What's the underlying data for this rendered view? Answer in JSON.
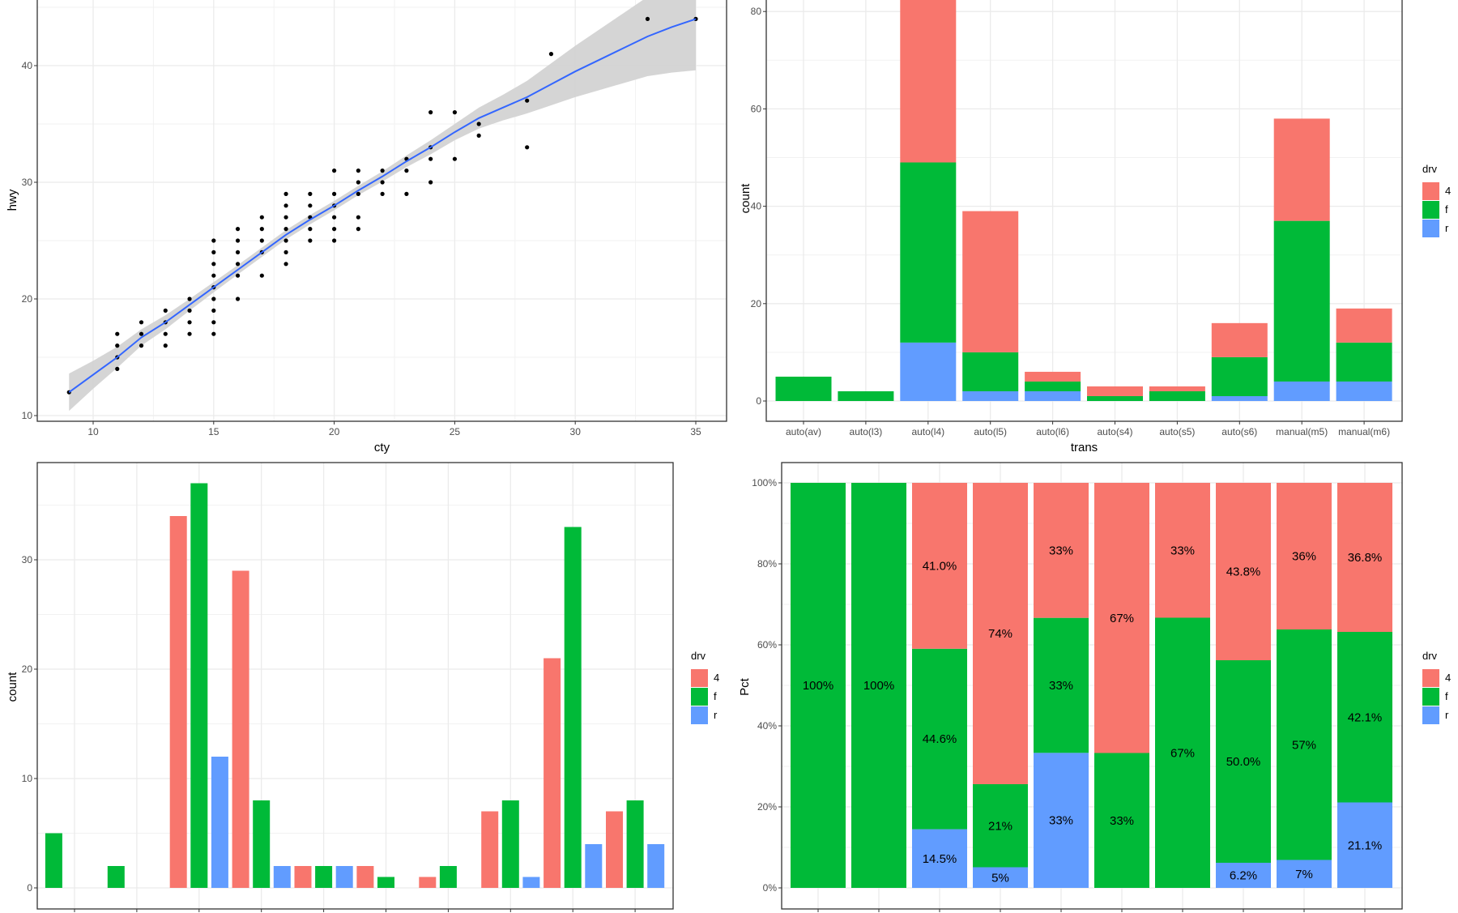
{
  "colors": {
    "4": "#F8766D",
    "f": "#00BA38",
    "r": "#619CFF",
    "smooth_line": "#3366FF",
    "smooth_band": "#D3D3D3",
    "points": "#000000"
  },
  "chart_data": [
    {
      "type": "scatter",
      "xlabel": "cty",
      "ylabel": "hwy",
      "x_ticks": [
        "10",
        "15",
        "20",
        "25",
        "30",
        "35"
      ],
      "y_ticks": [
        "10",
        "20",
        "30",
        "40"
      ],
      "grid": true,
      "points": [
        [
          9,
          12
        ],
        [
          11,
          17
        ],
        [
          11,
          16
        ],
        [
          11,
          15
        ],
        [
          11,
          14
        ],
        [
          12,
          18
        ],
        [
          12,
          17
        ],
        [
          12,
          16
        ],
        [
          13,
          19
        ],
        [
          13,
          18
        ],
        [
          13,
          17
        ],
        [
          13,
          16
        ],
        [
          14,
          20
        ],
        [
          14,
          19
        ],
        [
          14,
          18
        ],
        [
          14,
          17
        ],
        [
          15,
          25
        ],
        [
          15,
          24
        ],
        [
          15,
          23
        ],
        [
          15,
          22
        ],
        [
          15,
          21
        ],
        [
          15,
          20
        ],
        [
          15,
          19
        ],
        [
          15,
          18
        ],
        [
          15,
          17
        ],
        [
          16,
          26
        ],
        [
          16,
          25
        ],
        [
          16,
          24
        ],
        [
          16,
          23
        ],
        [
          16,
          22
        ],
        [
          16,
          20
        ],
        [
          17,
          27
        ],
        [
          17,
          26
        ],
        [
          17,
          25
        ],
        [
          17,
          24
        ],
        [
          17,
          22
        ],
        [
          18,
          29
        ],
        [
          18,
          28
        ],
        [
          18,
          27
        ],
        [
          18,
          26
        ],
        [
          18,
          25
        ],
        [
          18,
          24
        ],
        [
          18,
          23
        ],
        [
          19,
          29
        ],
        [
          19,
          28
        ],
        [
          19,
          27
        ],
        [
          19,
          26
        ],
        [
          19,
          25
        ],
        [
          20,
          31
        ],
        [
          20,
          29
        ],
        [
          20,
          28
        ],
        [
          20,
          27
        ],
        [
          20,
          26
        ],
        [
          20,
          25
        ],
        [
          21,
          31
        ],
        [
          21,
          30
        ],
        [
          21,
          29
        ],
        [
          21,
          27
        ],
        [
          21,
          26
        ],
        [
          22,
          31
        ],
        [
          22,
          30
        ],
        [
          22,
          29
        ],
        [
          23,
          32
        ],
        [
          23,
          31
        ],
        [
          23,
          29
        ],
        [
          24,
          36
        ],
        [
          24,
          33
        ],
        [
          24,
          32
        ],
        [
          24,
          30
        ],
        [
          25,
          36
        ],
        [
          25,
          32
        ],
        [
          26,
          35
        ],
        [
          26,
          34
        ],
        [
          28,
          37
        ],
        [
          28,
          33
        ],
        [
          29,
          41
        ],
        [
          33,
          44
        ],
        [
          35,
          44
        ]
      ],
      "smooth_fit": {
        "x": [
          9,
          10,
          11,
          12,
          13,
          14,
          15,
          16,
          17,
          18,
          19,
          20,
          21,
          22,
          23,
          24,
          25,
          26,
          27,
          28,
          29,
          30,
          31,
          32,
          33,
          34,
          35
        ],
        "y": [
          12,
          13.5,
          15,
          16.7,
          18,
          19.5,
          21,
          22.5,
          24,
          25.5,
          26.8,
          28,
          29.3,
          30.5,
          31.8,
          33,
          34.3,
          35.5,
          36.4,
          37.3,
          38.4,
          39.5,
          40.5,
          41.5,
          42.5,
          43.3,
          44
        ],
        "se": [
          0.8,
          0.6,
          0.45,
          0.35,
          0.3,
          0.25,
          0.22,
          0.2,
          0.2,
          0.2,
          0.2,
          0.2,
          0.2,
          0.22,
          0.25,
          0.3,
          0.35,
          0.45,
          0.55,
          0.7,
          0.9,
          1.1,
          1.3,
          1.5,
          1.7,
          1.95,
          2.2
        ]
      }
    },
    {
      "type": "bar",
      "stacking": "stack",
      "xlabel": "trans",
      "ylabel": "count",
      "categories": [
        "auto(av)",
        "auto(l3)",
        "auto(l4)",
        "auto(l5)",
        "auto(l6)",
        "auto(s4)",
        "auto(s5)",
        "auto(s6)",
        "manual(m5)",
        "manual(m6)"
      ],
      "y_ticks": [
        "0",
        "20",
        "40",
        "60",
        "80"
      ],
      "legend_title": "drv",
      "legend_position": "right",
      "series": [
        {
          "name": "4",
          "values": [
            0,
            0,
            34,
            29,
            2,
            2,
            1,
            7,
            21,
            7
          ]
        },
        {
          "name": "f",
          "values": [
            5,
            2,
            37,
            8,
            2,
            1,
            2,
            8,
            33,
            8
          ]
        },
        {
          "name": "r",
          "values": [
            0,
            0,
            12,
            2,
            2,
            0,
            0,
            1,
            4,
            4
          ]
        }
      ]
    },
    {
      "type": "bar",
      "stacking": "dodge",
      "ylabel": "count",
      "y_ticks": [
        "0",
        "10",
        "20",
        "30"
      ],
      "legend_title": "drv",
      "legend_position": "right",
      "series": [
        {
          "name": "4",
          "values": [
            null,
            null,
            34,
            29,
            2,
            2,
            1,
            7,
            21,
            7
          ]
        },
        {
          "name": "f",
          "values": [
            5,
            2,
            37,
            8,
            2,
            1,
            2,
            8,
            33,
            8
          ]
        },
        {
          "name": "r",
          "values": [
            null,
            null,
            12,
            2,
            2,
            null,
            null,
            1,
            4,
            4
          ]
        }
      ]
    },
    {
      "type": "bar",
      "stacking": "fill",
      "ylabel": "Pct",
      "y_ticks": [
        "0%",
        "20%",
        "40%",
        "60%",
        "80%",
        "100%"
      ],
      "legend_title": "drv",
      "legend_position": "right",
      "series": [
        {
          "name": "4",
          "values": [
            0,
            0,
            41.0,
            74.4,
            33.3,
            66.7,
            33.3,
            43.8,
            36.2,
            36.8
          ],
          "labels": [
            null,
            null,
            "41.0%",
            "74%",
            "33%",
            "67%",
            "33%",
            "43.8%",
            "36%",
            "36.8%"
          ]
        },
        {
          "name": "f",
          "values": [
            100,
            100,
            44.6,
            20.5,
            33.3,
            33.3,
            66.7,
            50.0,
            56.9,
            42.1
          ],
          "labels": [
            "100%",
            "100%",
            "44.6%",
            "21%",
            "33%",
            "33%",
            "67%",
            "50.0%",
            "57%",
            "42.1%"
          ]
        },
        {
          "name": "r",
          "values": [
            0,
            0,
            14.5,
            5.1,
            33.3,
            0,
            0,
            6.2,
            6.9,
            21.1
          ],
          "labels": [
            null,
            null,
            "14.5%",
            "5%",
            "33%",
            null,
            null,
            "6.2%",
            "7%",
            "21.1%"
          ]
        }
      ]
    }
  ]
}
